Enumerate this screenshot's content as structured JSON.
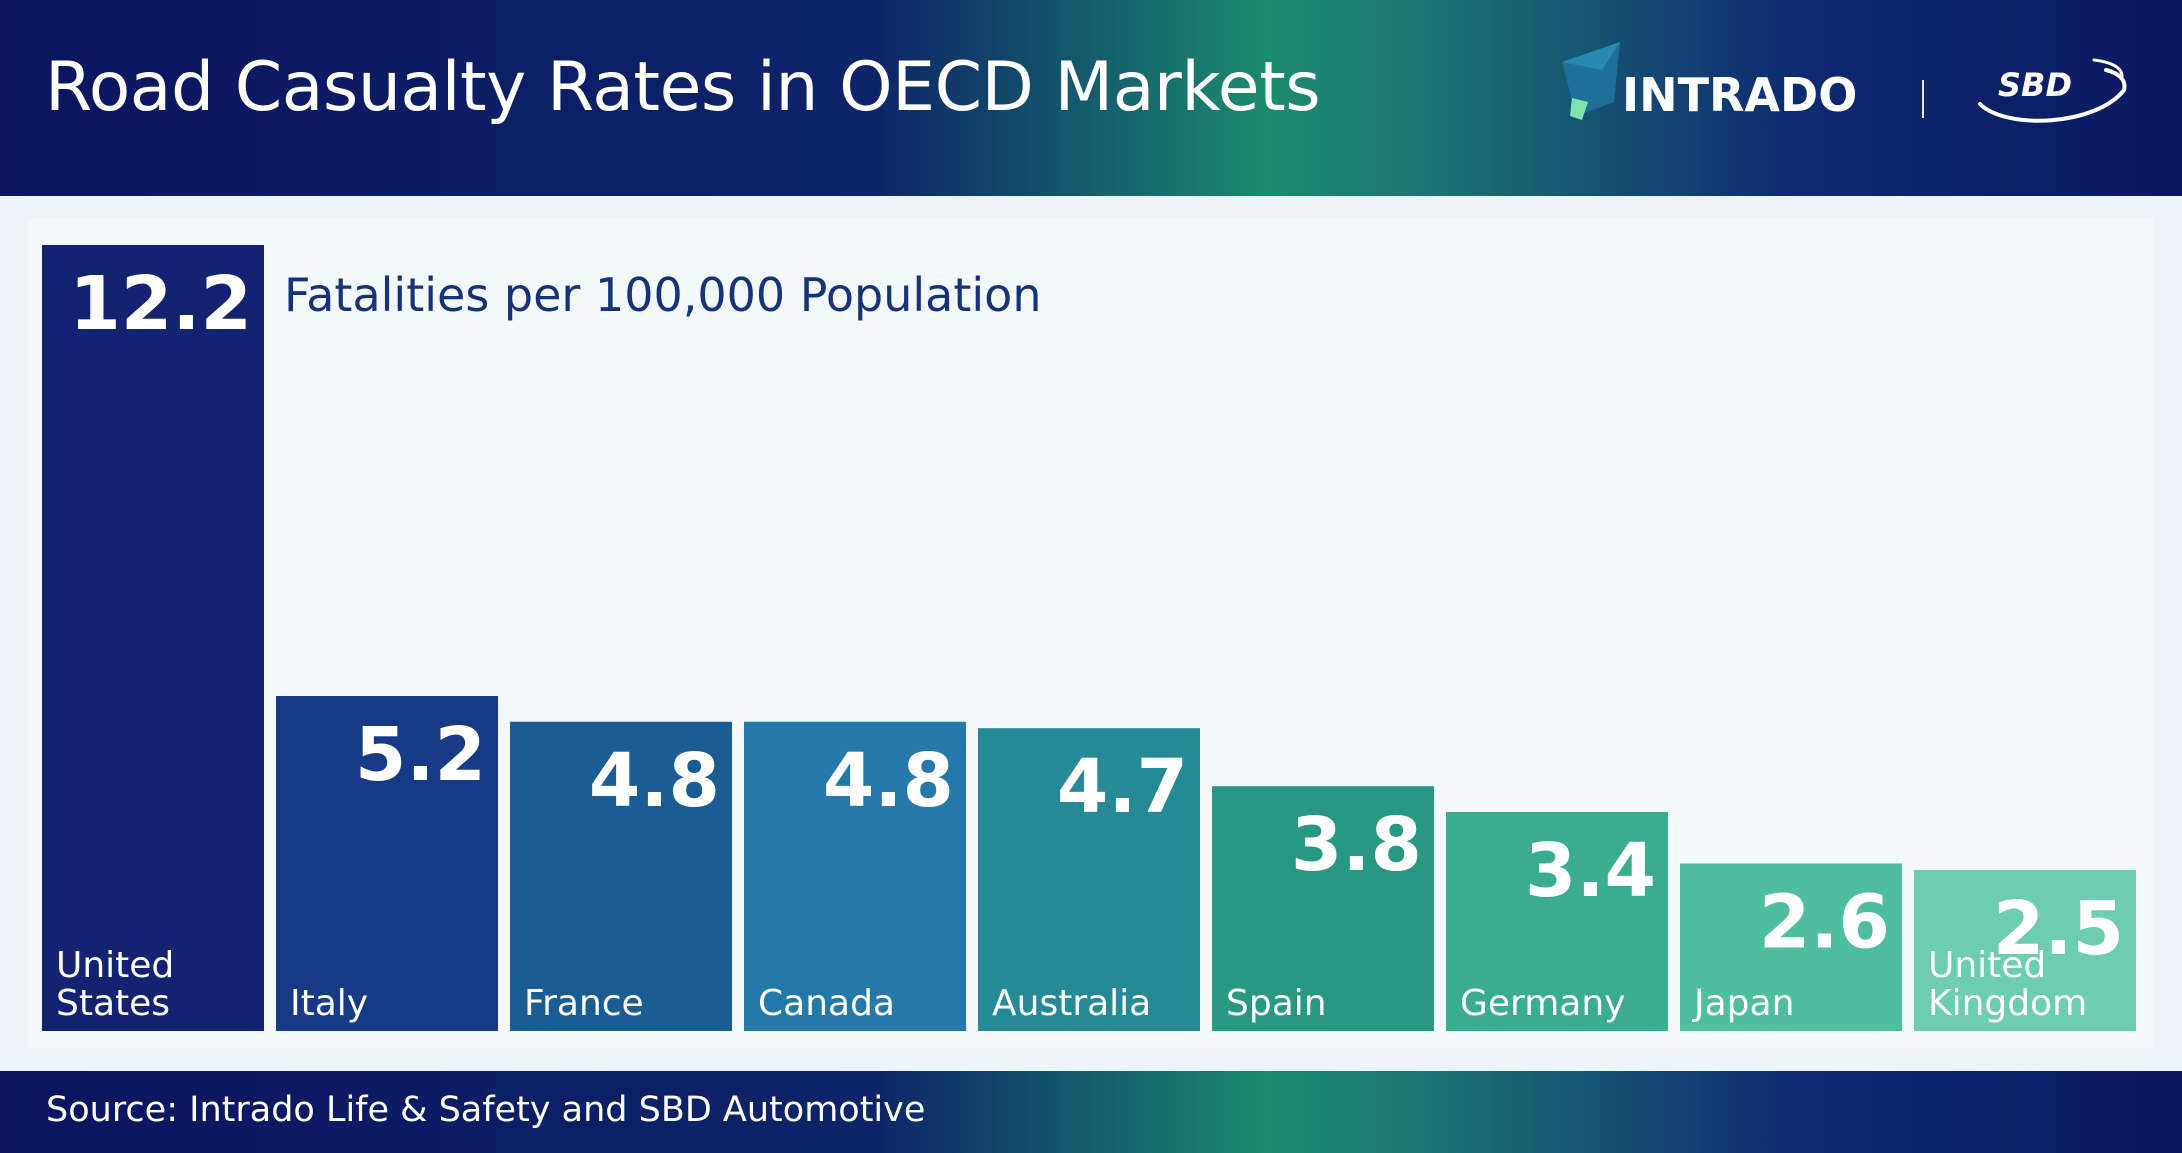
{
  "header": {
    "title": "Road Casualty Rates in OECD Markets",
    "logo_intrado": "INTRADO",
    "logo_sbd": "SBD"
  },
  "footer": {
    "source": "Source: Intrado Life & Safety and SBD Automotive"
  },
  "colors": {
    "header_dark": "#0b1560",
    "header_green": "#1b8a6e",
    "panel_bg": "#f3f8fa",
    "subtitle_text": "#15327a"
  },
  "chart_data": {
    "type": "bar",
    "title": "Road Casualty Rates in OECD Markets",
    "subtitle": "Fatalities per 100,000 Population",
    "xlabel": "",
    "ylabel": "Fatalities per 100,000 Population",
    "ylim": [
      0,
      12.2
    ],
    "grid": false,
    "legend": "none",
    "categories": [
      [
        "United",
        "States"
      ],
      [
        "Italy"
      ],
      [
        "France"
      ],
      [
        "Canada"
      ],
      [
        "Australia"
      ],
      [
        "Spain"
      ],
      [
        "Germany"
      ],
      [
        "Japan"
      ],
      [
        "United",
        "Kingdom"
      ]
    ],
    "values": [
      12.2,
      5.2,
      4.8,
      4.8,
      4.7,
      3.8,
      3.4,
      2.6,
      2.5
    ],
    "value_labels": [
      "12.2",
      "5.2",
      "4.8",
      "4.8",
      "4.7",
      "3.8",
      "3.4",
      "2.6",
      "2.5"
    ],
    "bar_colors": [
      "#132371",
      "#173a87",
      "#1b5c93",
      "#2479a8",
      "#268a96",
      "#299882",
      "#3aac8f",
      "#4fbea0",
      "#6ccdb0"
    ]
  }
}
